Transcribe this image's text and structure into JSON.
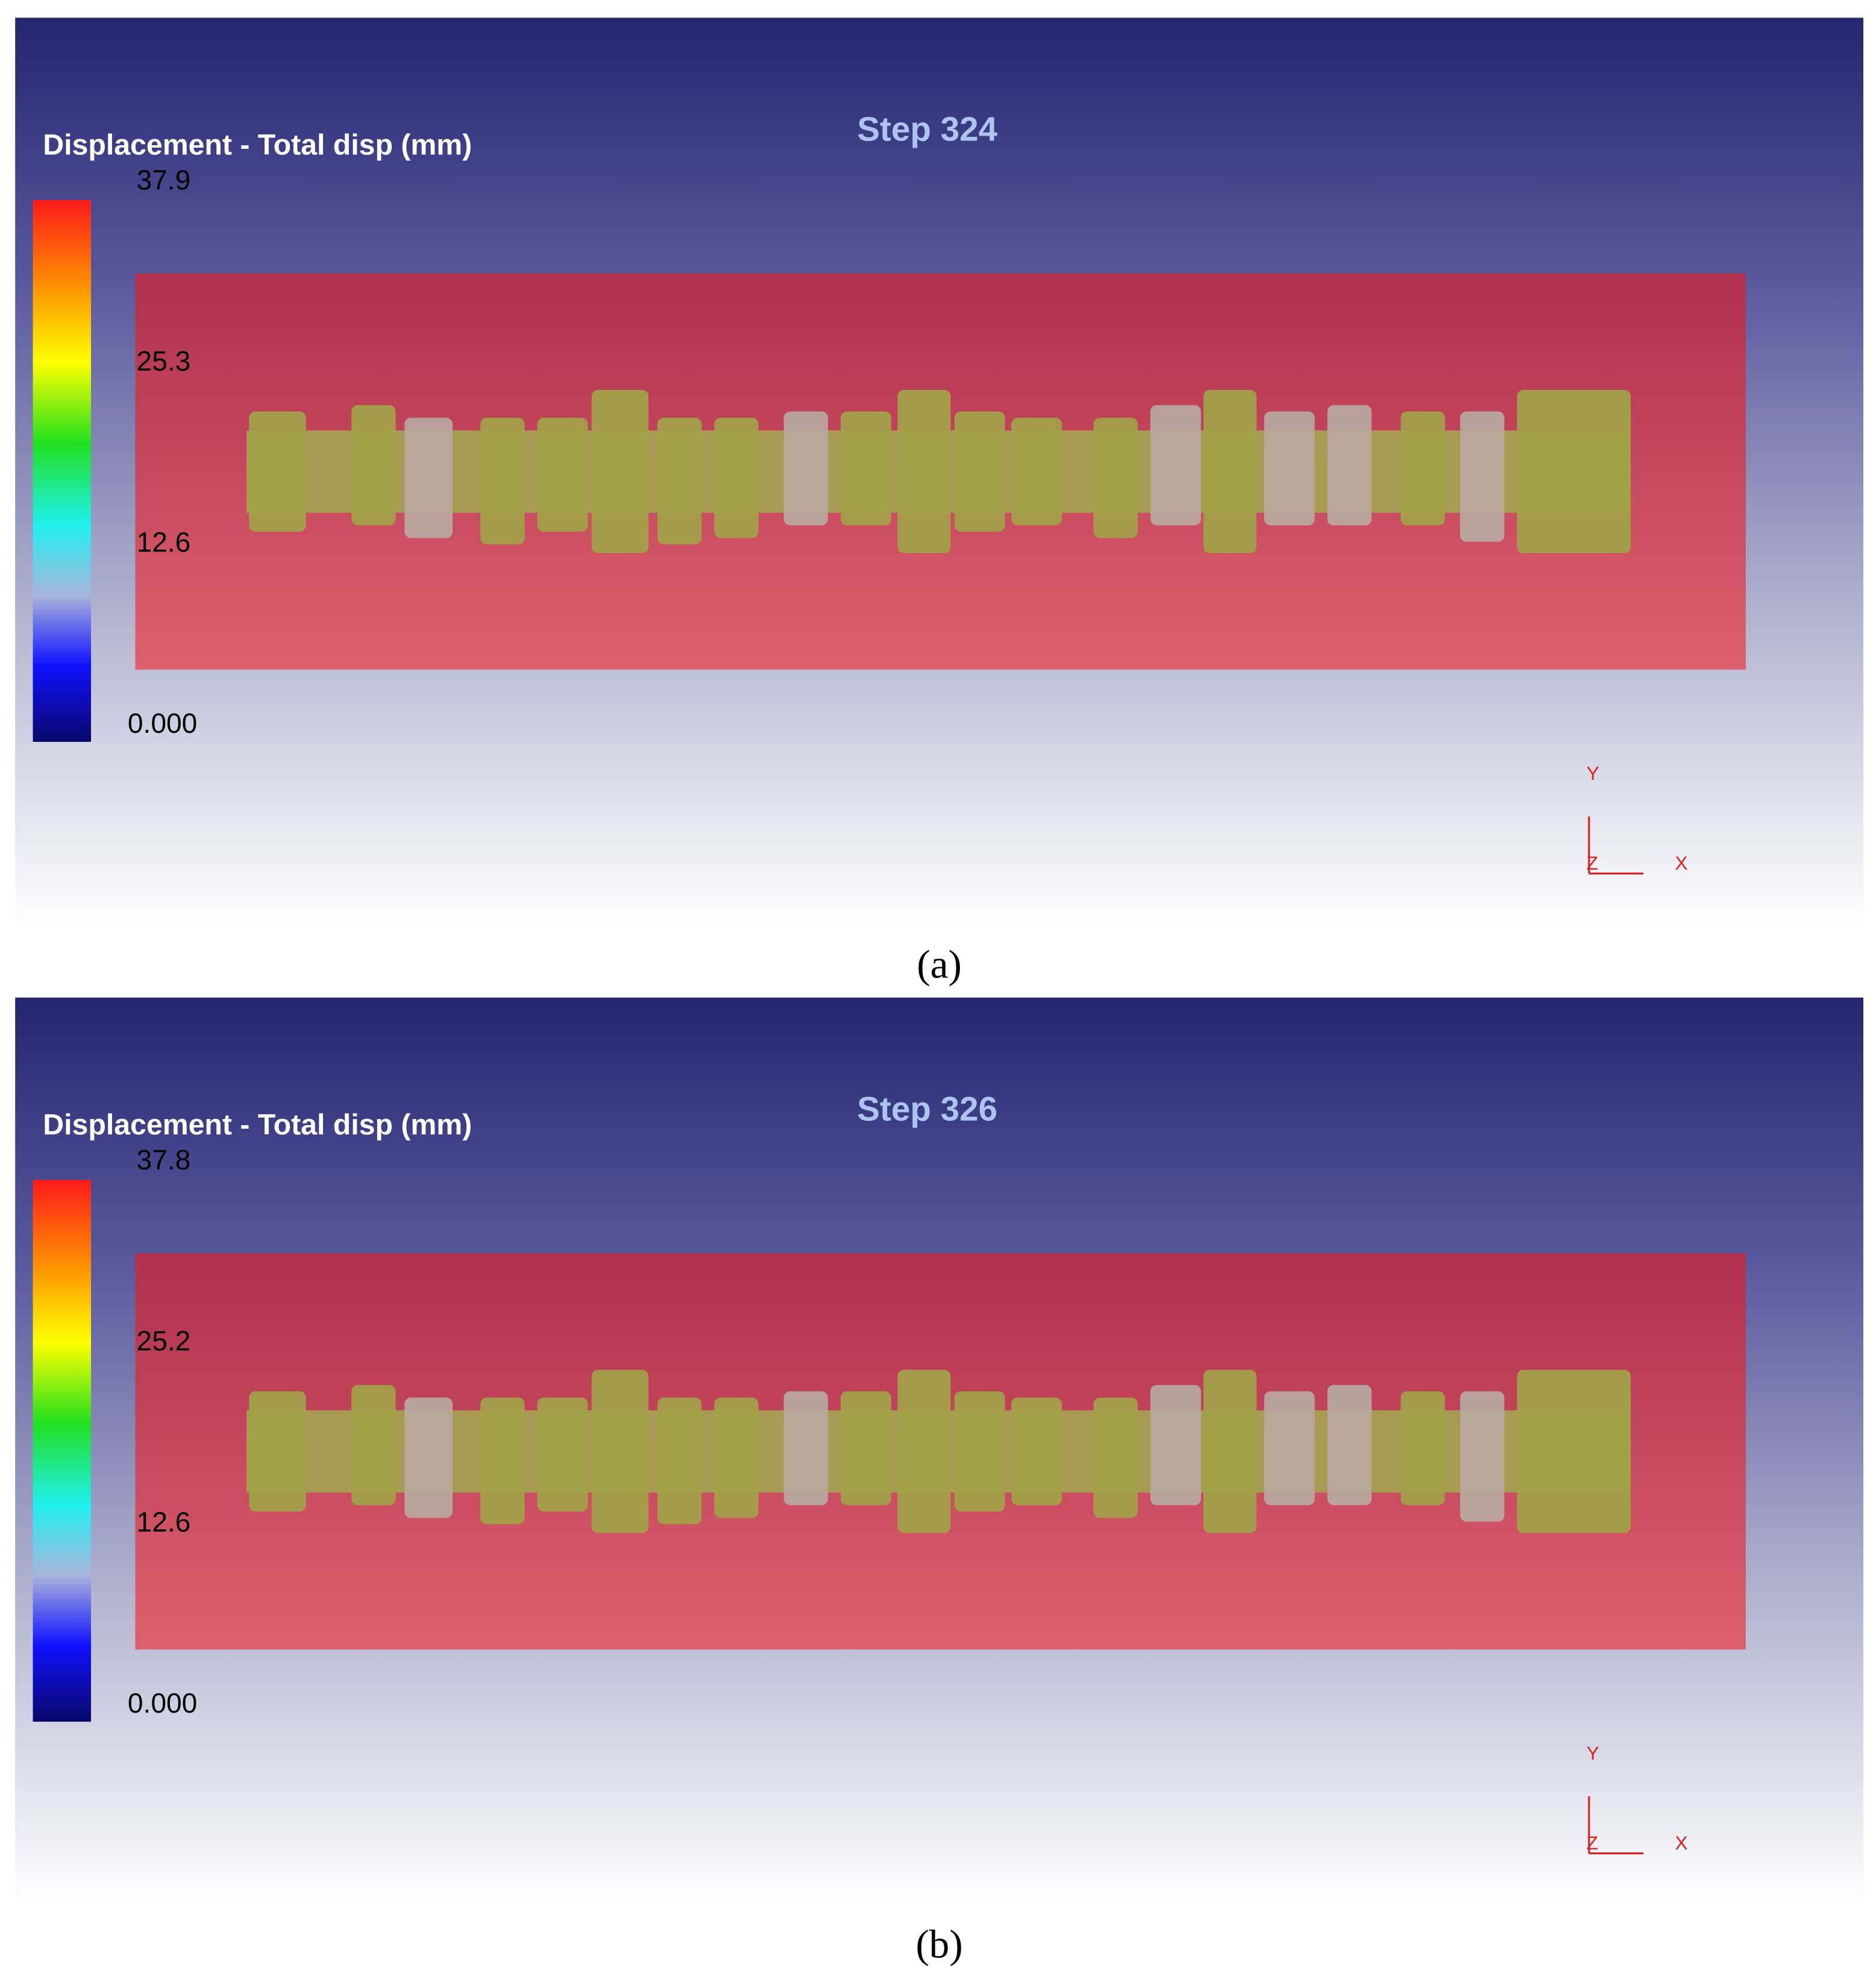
{
  "panels": [
    {
      "title": "Displacement - Total disp (mm)",
      "step": "Step  324",
      "legend_ticks": [
        "37.9",
        "25.3",
        "12.6",
        "0.000"
      ],
      "axes": {
        "y": "Y",
        "z": "Z",
        "x": "X"
      },
      "caption": "(a)"
    },
    {
      "title": "Displacement - Total disp (mm)",
      "step": "Step  326",
      "legend_ticks": [
        "37.8",
        "25.2",
        "12.6",
        "0.000"
      ],
      "axes": {
        "y": "Y",
        "z": "Z",
        "x": "X"
      },
      "caption": "(b)"
    }
  ]
}
